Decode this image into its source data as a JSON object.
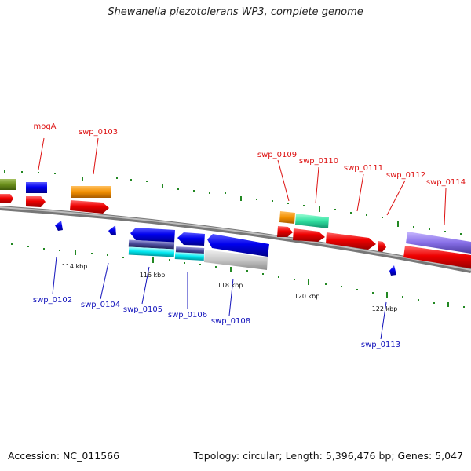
{
  "title": "Shewanella piezotolerans WP3, complete genome",
  "footer": {
    "accession": "Accession: NC_011566",
    "topology": "Topology: circular; Length: 5,396,476 bp; Genes: 5,047"
  },
  "colors": {
    "backbone": "#8c8c8c",
    "forward_label": "#dd1111",
    "reverse_label": "#1111bb",
    "tick": "#228822"
  },
  "gene_labels": [
    {
      "id": "mogA",
      "strand": "forward"
    },
    {
      "id": "swp_0103",
      "strand": "forward"
    },
    {
      "id": "swp_0109",
      "strand": "forward"
    },
    {
      "id": "swp_0110",
      "strand": "forward"
    },
    {
      "id": "swp_0111",
      "strand": "forward"
    },
    {
      "id": "swp_0112",
      "strand": "forward"
    },
    {
      "id": "swp_0114",
      "strand": "forward"
    },
    {
      "id": "swp_0102",
      "strand": "reverse"
    },
    {
      "id": "swp_0104",
      "strand": "reverse"
    },
    {
      "id": "swp_0105",
      "strand": "reverse"
    },
    {
      "id": "swp_0106",
      "strand": "reverse"
    },
    {
      "id": "swp_0108",
      "strand": "reverse"
    },
    {
      "id": "swp_0113",
      "strand": "reverse"
    }
  ],
  "scale_labels": [
    "114 kbp",
    "116 kbp",
    "118 kbp",
    "120 kbp",
    "122 kbp"
  ]
}
